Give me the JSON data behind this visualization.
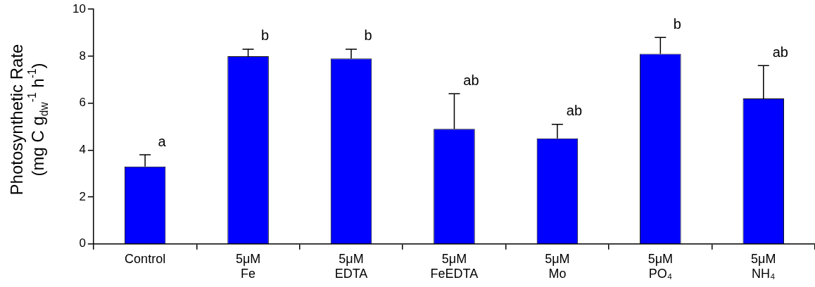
{
  "chart_data": {
    "type": "bar",
    "ylabel": "Photosynthetic Rate\n(mg C g$_{dw}$$^{-1}$ h$^{-1}$)",
    "categories": [
      "Control",
      "5μM\nFe",
      "5μM\nEDTA",
      "5μM\nFeEDTA",
      "5μM\nMo",
      "5μM\nPO₄",
      "5μM\nNH₄"
    ],
    "values": [
      3.3,
      8.0,
      7.9,
      4.9,
      4.5,
      8.1,
      6.2
    ],
    "errors": [
      0.5,
      0.3,
      0.4,
      1.5,
      0.6,
      0.7,
      1.4
    ],
    "color": "#0000ff",
    "ylim": [
      0,
      10
    ],
    "yticks": [
      0,
      2,
      4,
      6,
      8,
      10
    ],
    "grid": false,
    "annotations": [
      {
        "text": "a",
        "x": "Control",
        "y": 3.8
      },
      {
        "text": "b",
        "x": "5μM\nFe",
        "y": 8.3
      },
      {
        "text": "b",
        "x": "5μM\nEDTA",
        "y": 8.3
      },
      {
        "text": "ab",
        "x": "5μM\nFeEDTA",
        "y": 6.4
      },
      {
        "text": "ab",
        "x": "5μM\nMo",
        "y": 5.1
      },
      {
        "text": "b",
        "x": "5μM\nPO₄",
        "y": 8.8
      },
      {
        "text": "ab",
        "x": "5μM\nNH₄",
        "y": 7.6
      }
    ]
  }
}
